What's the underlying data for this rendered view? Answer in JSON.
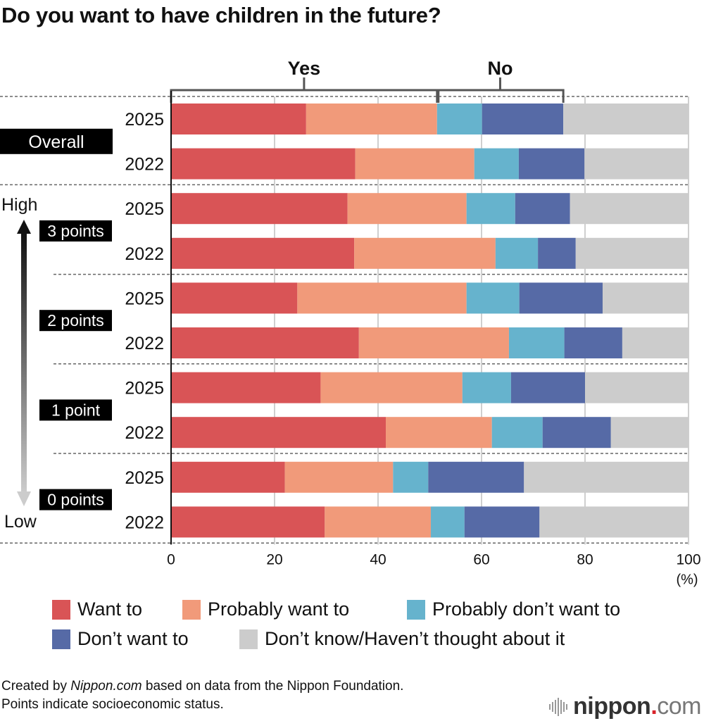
{
  "title": "Do you want to have children in the future?",
  "chart_data": {
    "type": "bar",
    "orientation": "horizontal",
    "stacked": true,
    "title": "Do you want to have children in the future?",
    "xlabel": "(%)",
    "xlim": [
      0,
      100
    ],
    "xticks": [
      0,
      20,
      40,
      60,
      80,
      100
    ],
    "xtick_labels": [
      "0",
      "20",
      "40",
      "60",
      "80",
      "100"
    ],
    "grid": true,
    "legend_position": "bottom",
    "bracket_labels": {
      "yes": "Yes",
      "no": "No"
    },
    "series": [
      {
        "name": "Want to",
        "color": "#d95456"
      },
      {
        "name": "Probably want to",
        "color": "#f19a7a"
      },
      {
        "name": "Probably don’t want to",
        "color": "#66b3cd"
      },
      {
        "name": "Don’t want to",
        "color": "#566aa6"
      },
      {
        "name": "Don’t know/Haven’t thought about it",
        "color": "#cccccc"
      }
    ],
    "groups": [
      {
        "label": "Overall",
        "rows": [
          {
            "year": "2025",
            "values": [
              26.1,
              25.3,
              8.7,
              15.7,
              24.2
            ]
          },
          {
            "year": "2022",
            "values": [
              35.6,
              23.0,
              8.6,
              12.7,
              20.1
            ]
          }
        ]
      },
      {
        "label": "3 points",
        "rows": [
          {
            "year": "2025",
            "values": [
              34.1,
              23.0,
              9.4,
              10.6,
              22.9
            ]
          },
          {
            "year": "2022",
            "values": [
              35.4,
              27.3,
              8.2,
              7.3,
              21.8
            ]
          }
        ]
      },
      {
        "label": "2 points",
        "rows": [
          {
            "year": "2025",
            "values": [
              24.4,
              32.7,
              10.2,
              16.1,
              16.6
            ]
          },
          {
            "year": "2022",
            "values": [
              36.3,
              29.0,
              10.7,
              11.2,
              12.8
            ]
          }
        ]
      },
      {
        "label": "1 point",
        "rows": [
          {
            "year": "2025",
            "values": [
              28.9,
              27.4,
              9.4,
              14.3,
              20.0
            ]
          },
          {
            "year": "2022",
            "values": [
              41.5,
              20.5,
              9.8,
              13.2,
              15.0
            ]
          }
        ]
      },
      {
        "label": "0 points",
        "rows": [
          {
            "year": "2025",
            "values": [
              22.0,
              20.9,
              6.8,
              18.5,
              31.8
            ]
          },
          {
            "year": "2022",
            "values": [
              29.7,
              20.5,
              6.5,
              14.5,
              28.8
            ]
          }
        ]
      }
    ],
    "scale_arrow": {
      "top_label": "High",
      "bottom_label": "Low"
    }
  },
  "legend": [
    {
      "label": "Want to",
      "color": "#d95456"
    },
    {
      "label": "Probably want to",
      "color": "#f19a7a"
    },
    {
      "label": "Probably don’t want to",
      "color": "#66b3cd"
    },
    {
      "label": "Don’t want to",
      "color": "#566aa6"
    },
    {
      "label": "Don’t know/Haven’t thought about it",
      "color": "#cccccc"
    }
  ],
  "footer": {
    "line1_prefix": "Created by ",
    "line1_source": "Nippon.com",
    "line1_suffix": " based on data from the Nippon Foundation.",
    "line2": "Points indicate socioeconomic status."
  },
  "logo": {
    "name": "nippon",
    "dot": ".",
    "tld": "com"
  }
}
